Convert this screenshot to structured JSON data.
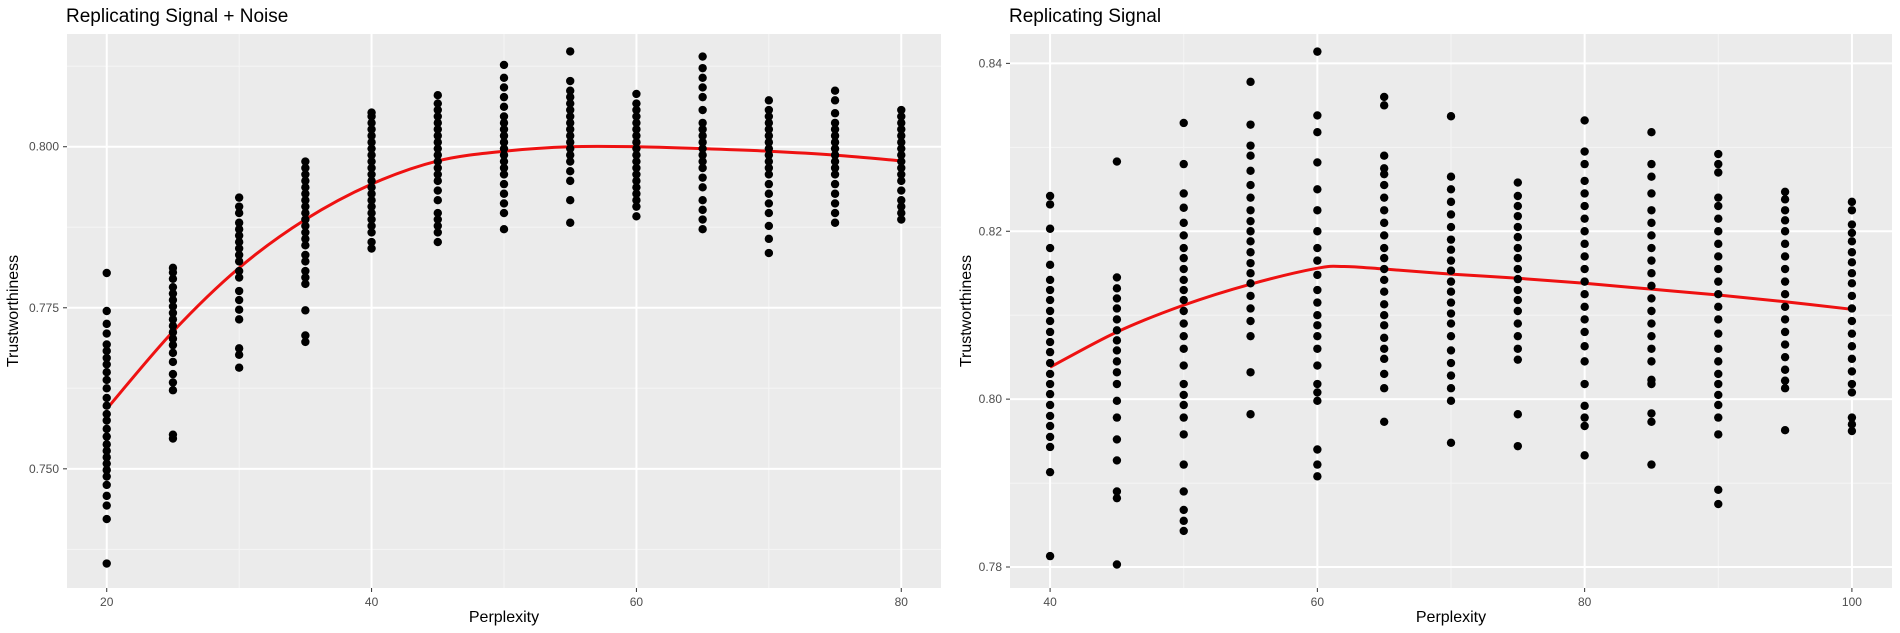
{
  "chart_data": [
    {
      "type": "scatter",
      "title": "Replicating Signal + Noise",
      "xlabel": "Perplexity",
      "ylabel": "Trustworthiness",
      "xlim": [
        17,
        83
      ],
      "ylim": [
        0.7315,
        0.8175
      ],
      "xticks": [
        20,
        40,
        60,
        80
      ],
      "yticks": [
        0.75,
        0.775,
        0.8
      ],
      "xtick_labels": [
        "20",
        "40",
        "60",
        "80"
      ],
      "ytick_labels": [
        "0.750",
        "0.775",
        "0.800"
      ],
      "grid": true,
      "points_color": "#000000",
      "smooth_color": "#ee1111",
      "background": "#ebebeb",
      "points": {
        "20": [
          0.7353,
          0.7422,
          0.7443,
          0.7458,
          0.7475,
          0.7488,
          0.7498,
          0.7508,
          0.7518,
          0.7528,
          0.7538,
          0.755,
          0.7562,
          0.7575,
          0.7585,
          0.7598,
          0.761,
          0.7625,
          0.7638,
          0.765,
          0.7662,
          0.7672,
          0.7683,
          0.7693,
          0.771,
          0.7725,
          0.7745,
          0.7804
        ],
        "25": [
          0.7547,
          0.7553,
          0.7622,
          0.7634,
          0.7647,
          0.7666,
          0.768,
          0.7692,
          0.7702,
          0.7712,
          0.7722,
          0.7732,
          0.7742,
          0.7752,
          0.7762,
          0.7772,
          0.7782,
          0.7795,
          0.7805,
          0.7812
        ],
        "30": [
          0.7657,
          0.7677,
          0.7687,
          0.7732,
          0.7747,
          0.7762,
          0.7776,
          0.7797,
          0.7807,
          0.7822,
          0.7832,
          0.7842,
          0.7852,
          0.7862,
          0.7872,
          0.7882,
          0.7897,
          0.7907,
          0.7921
        ],
        "35": [
          0.7697,
          0.7707,
          0.7746,
          0.7787,
          0.7797,
          0.7807,
          0.7822,
          0.7832,
          0.7847,
          0.7857,
          0.7867,
          0.7877,
          0.7887,
          0.7897,
          0.7907,
          0.7917,
          0.7927,
          0.7937,
          0.7947,
          0.7957,
          0.7967,
          0.7977
        ],
        "40": [
          0.7842,
          0.7852,
          0.7867,
          0.7877,
          0.7887,
          0.7897,
          0.7907,
          0.7917,
          0.7927,
          0.7937,
          0.7947,
          0.7957,
          0.7967,
          0.7977,
          0.7987,
          0.7997,
          0.8007,
          0.8017,
          0.8027,
          0.8037,
          0.8047,
          0.8053
        ],
        "45": [
          0.7852,
          0.7867,
          0.7877,
          0.7887,
          0.7897,
          0.7917,
          0.7932,
          0.7947,
          0.7957,
          0.7967,
          0.7977,
          0.7987,
          0.7997,
          0.8007,
          0.8017,
          0.8027,
          0.8037,
          0.8047,
          0.8057,
          0.8067,
          0.808
        ],
        "50": [
          0.7872,
          0.7897,
          0.7912,
          0.7927,
          0.7942,
          0.7957,
          0.7967,
          0.7977,
          0.7987,
          0.7997,
          0.8007,
          0.8017,
          0.8027,
          0.8037,
          0.8047,
          0.8062,
          0.8077,
          0.8092,
          0.8107,
          0.8127
        ],
        "55": [
          0.7882,
          0.7917,
          0.7947,
          0.7962,
          0.7977,
          0.7987,
          0.7997,
          0.8007,
          0.8017,
          0.8027,
          0.8037,
          0.8047,
          0.8057,
          0.8067,
          0.8077,
          0.8087,
          0.8102,
          0.8148
        ],
        "60": [
          0.7892,
          0.7907,
          0.7917,
          0.7927,
          0.7937,
          0.7947,
          0.7957,
          0.7967,
          0.7977,
          0.7987,
          0.7997,
          0.8007,
          0.8017,
          0.8027,
          0.8037,
          0.8047,
          0.8057,
          0.8067,
          0.8082
        ],
        "65": [
          0.7872,
          0.7887,
          0.7902,
          0.7917,
          0.7937,
          0.7952,
          0.7967,
          0.7977,
          0.7987,
          0.7997,
          0.8007,
          0.8017,
          0.8027,
          0.8037,
          0.8057,
          0.8077,
          0.8092,
          0.8107,
          0.8122,
          0.814
        ],
        "70": [
          0.7835,
          0.7857,
          0.7877,
          0.7897,
          0.7912,
          0.7927,
          0.7942,
          0.7957,
          0.7967,
          0.7977,
          0.7987,
          0.7997,
          0.8007,
          0.8017,
          0.8027,
          0.8037,
          0.8047,
          0.8057,
          0.8072
        ],
        "75": [
          0.7882,
          0.7897,
          0.7912,
          0.7927,
          0.7942,
          0.7957,
          0.7967,
          0.7977,
          0.7987,
          0.7997,
          0.8007,
          0.8017,
          0.8027,
          0.8037,
          0.8052,
          0.8072,
          0.8087
        ],
        "80": [
          0.7887,
          0.7897,
          0.7907,
          0.7917,
          0.7932,
          0.7947,
          0.7957,
          0.7967,
          0.7977,
          0.7987,
          0.7997,
          0.8007,
          0.8017,
          0.8027,
          0.8037,
          0.8047,
          0.8057
        ]
      },
      "smooth": {
        "x": [
          20,
          25,
          30,
          35,
          40,
          45,
          50,
          55,
          60,
          65,
          70,
          75,
          80
        ],
        "y": [
          0.7593,
          0.7713,
          0.7812,
          0.7887,
          0.7942,
          0.7978,
          0.7993,
          0.8,
          0.8,
          0.7997,
          0.7993,
          0.7987,
          0.7978
        ]
      }
    },
    {
      "type": "scatter",
      "title": "Replicating Signal",
      "xlabel": "Perplexity",
      "ylabel": "Trustworthiness",
      "xlim": [
        37,
        103
      ],
      "ylim": [
        0.7775,
        0.8435
      ],
      "xticks": [
        40,
        60,
        80,
        100
      ],
      "yticks": [
        0.78,
        0.8,
        0.82,
        0.84
      ],
      "xtick_labels": [
        "40",
        "60",
        "80",
        "100"
      ],
      "ytick_labels": [
        "0.78",
        "0.80",
        "0.82",
        "0.84"
      ],
      "grid": true,
      "points_color": "#000000",
      "smooth_color": "#ee1111",
      "background": "#ebebeb",
      "points": {
        "40": [
          0.7813,
          0.7913,
          0.7943,
          0.7955,
          0.7968,
          0.798,
          0.7993,
          0.8006,
          0.8018,
          0.803,
          0.8043,
          0.8056,
          0.8068,
          0.808,
          0.8093,
          0.8105,
          0.8118,
          0.813,
          0.8142,
          0.816,
          0.818,
          0.8203,
          0.8232,
          0.8242
        ],
        "45": [
          0.7803,
          0.7882,
          0.789,
          0.7927,
          0.7952,
          0.7978,
          0.7998,
          0.8018,
          0.8032,
          0.8045,
          0.8058,
          0.807,
          0.8082,
          0.8095,
          0.8108,
          0.812,
          0.8132,
          0.8145,
          0.8283
        ],
        "50": [
          0.7843,
          0.7855,
          0.7868,
          0.789,
          0.7922,
          0.7958,
          0.7978,
          0.7993,
          0.8005,
          0.8018,
          0.804,
          0.806,
          0.8075,
          0.809,
          0.8105,
          0.8118,
          0.813,
          0.8142,
          0.8155,
          0.8168,
          0.818,
          0.8195,
          0.821,
          0.8228,
          0.8245,
          0.828,
          0.8329
        ],
        "55": [
          0.7982,
          0.8032,
          0.8075,
          0.8093,
          0.8108,
          0.8123,
          0.8138,
          0.815,
          0.8162,
          0.8175,
          0.8188,
          0.82,
          0.8212,
          0.8225,
          0.824,
          0.8255,
          0.8272,
          0.829,
          0.8302,
          0.8327,
          0.8378
        ],
        "60": [
          0.7908,
          0.7922,
          0.794,
          0.7998,
          0.8008,
          0.8018,
          0.804,
          0.806,
          0.8075,
          0.8088,
          0.81,
          0.8115,
          0.813,
          0.8148,
          0.8165,
          0.818,
          0.82,
          0.8225,
          0.825,
          0.8282,
          0.8318,
          0.8338,
          0.8414
        ],
        "65": [
          0.7973,
          0.8013,
          0.803,
          0.8048,
          0.806,
          0.8073,
          0.8088,
          0.81,
          0.8113,
          0.8128,
          0.8142,
          0.8155,
          0.8168,
          0.818,
          0.8195,
          0.821,
          0.8225,
          0.824,
          0.8255,
          0.8268,
          0.8275,
          0.829,
          0.835,
          0.836
        ],
        "70": [
          0.7948,
          0.7998,
          0.8013,
          0.8028,
          0.8043,
          0.8058,
          0.8075,
          0.809,
          0.8102,
          0.8115,
          0.8128,
          0.814,
          0.8153,
          0.8165,
          0.8178,
          0.819,
          0.8205,
          0.822,
          0.8235,
          0.825,
          0.8265,
          0.8337
        ],
        "75": [
          0.7944,
          0.7982,
          0.8047,
          0.806,
          0.8075,
          0.809,
          0.8105,
          0.8118,
          0.813,
          0.8143,
          0.8155,
          0.8168,
          0.818,
          0.8193,
          0.8205,
          0.8218,
          0.823,
          0.8242,
          0.8258
        ],
        "80": [
          0.7933,
          0.7968,
          0.7978,
          0.7992,
          0.8018,
          0.8045,
          0.8063,
          0.808,
          0.8095,
          0.811,
          0.8125,
          0.814,
          0.8155,
          0.817,
          0.8185,
          0.82,
          0.8215,
          0.823,
          0.8245,
          0.826,
          0.828,
          0.8295,
          0.8332
        ],
        "85": [
          0.7922,
          0.7973,
          0.7983,
          0.8018,
          0.8023,
          0.8045,
          0.806,
          0.8075,
          0.809,
          0.8105,
          0.812,
          0.8135,
          0.815,
          0.8165,
          0.818,
          0.8195,
          0.821,
          0.8225,
          0.8245,
          0.8265,
          0.828,
          0.8318
        ],
        "90": [
          0.7875,
          0.7892,
          0.7958,
          0.7978,
          0.7993,
          0.8005,
          0.8018,
          0.803,
          0.8045,
          0.806,
          0.8078,
          0.8095,
          0.811,
          0.8125,
          0.814,
          0.8155,
          0.817,
          0.8185,
          0.82,
          0.8215,
          0.823,
          0.824,
          0.827,
          0.828,
          0.8292
        ],
        "95": [
          0.7963,
          0.8013,
          0.8022,
          0.8035,
          0.805,
          0.8065,
          0.808,
          0.8095,
          0.811,
          0.8125,
          0.814,
          0.8155,
          0.817,
          0.8185,
          0.82,
          0.8213,
          0.8225,
          0.8238,
          0.8247
        ],
        "100": [
          0.7962,
          0.797,
          0.7978,
          0.8008,
          0.8018,
          0.8033,
          0.8048,
          0.8063,
          0.8078,
          0.8093,
          0.8108,
          0.8123,
          0.8138,
          0.815,
          0.8163,
          0.8175,
          0.8188,
          0.8198,
          0.8208,
          0.8225,
          0.8235
        ]
      },
      "smooth": {
        "x": [
          40,
          45,
          50,
          55,
          60,
          62,
          65,
          70,
          75,
          80,
          85,
          90,
          95,
          100
        ],
        "y": [
          0.8038,
          0.808,
          0.8112,
          0.8137,
          0.8156,
          0.8158,
          0.8155,
          0.8149,
          0.8144,
          0.8138,
          0.8131,
          0.8124,
          0.8116,
          0.8107
        ]
      }
    }
  ]
}
